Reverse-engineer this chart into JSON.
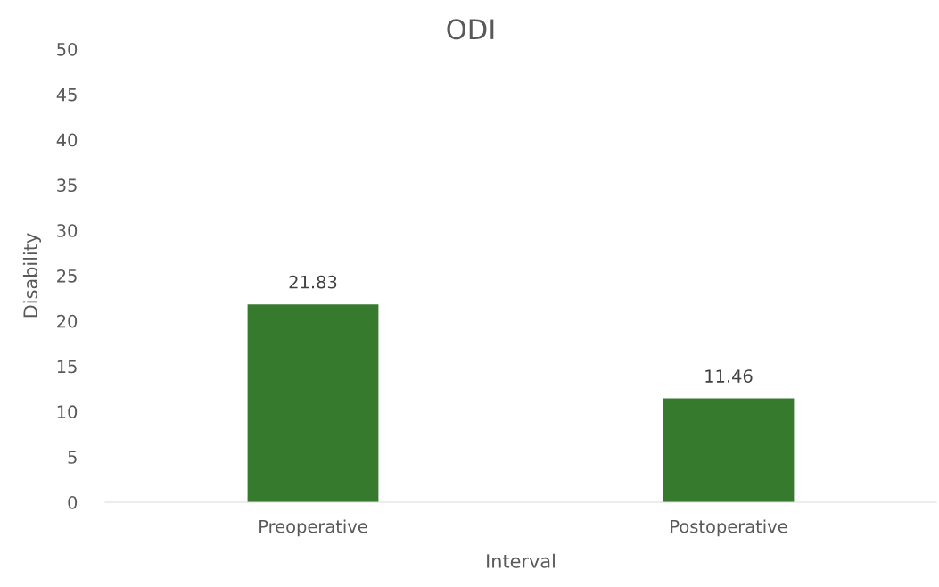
{
  "chart_data": {
    "type": "bar",
    "title": "ODI",
    "xlabel": "Interval",
    "ylabel": "Disability",
    "categories": [
      "Preoperative",
      "Postoperative"
    ],
    "values": [
      21.83,
      11.46
    ],
    "color": "#367a2e",
    "ylim": [
      0,
      50
    ],
    "yticks": [
      0,
      5,
      10,
      15,
      20,
      25,
      30,
      35,
      40,
      45,
      50
    ],
    "grid": false,
    "data_labels": true
  }
}
